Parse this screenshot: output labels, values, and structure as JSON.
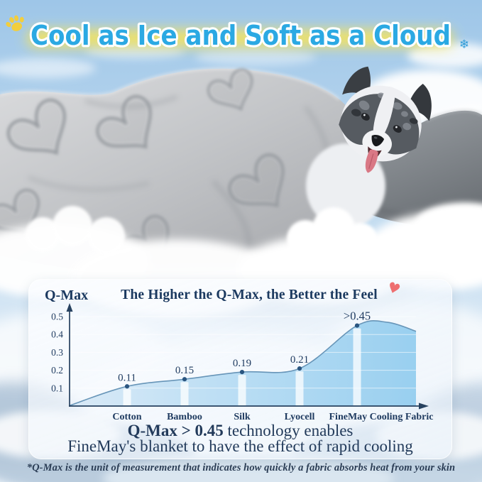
{
  "banner": {
    "title": "Cool as Ice and Soft as a Cloud",
    "snowflake_glyph": "❄",
    "colors": {
      "title_fill": "#2BA9E3",
      "outline": "#FFFFFF",
      "glow": "#F7E45C",
      "paw": "#F2CE3E",
      "snowflake": "#2E9BD8"
    }
  },
  "hero_scene": {
    "subject": "dog-under-heart-quilted-gray-blanket-on-clouds-with-gray-pillow"
  },
  "chart_panel": {
    "y_axis_title": "Q-Max",
    "title": "The Higher the Q-Max, the Better the Feel",
    "heart_glyph": "♥",
    "caption": {
      "bold": "Q-Max > 0.45",
      "rest": " technology enables",
      "line2": "FineMay's blanket to have the effect of rapid cooling"
    }
  },
  "footnote": "*Q-Max is the unit of measurement that indicates how quickly a fabric absorbs heat from your skin",
  "chart_data": {
    "type": "area",
    "title": "The Higher the Q-Max, the Better the Feel",
    "categories": [
      "Cotton",
      "Bamboo",
      "Silk",
      "Lyocell",
      "FineMay Cooling Fabric"
    ],
    "values": [
      0.11,
      0.15,
      0.19,
      0.21,
      0.45
    ],
    "value_labels": [
      "0.11",
      "0.15",
      "0.19",
      "0.21",
      ">0.45"
    ],
    "ylabel": "Q-Max",
    "xlabel": "",
    "ylim": [
      0,
      0.5
    ],
    "yticks": [
      0.1,
      0.2,
      0.3,
      0.4,
      0.5
    ],
    "grid": true,
    "legend": false,
    "colors": {
      "line": "#6795B8",
      "area_start": "#D6E8F6",
      "area_end": "#8FCBEE",
      "dot": "#2A5580",
      "text": "#1E3A5F",
      "axis": "#26415F",
      "column": "rgba(255,255,255,0.75)",
      "grid": "rgba(255,255,255,0.6)"
    }
  }
}
